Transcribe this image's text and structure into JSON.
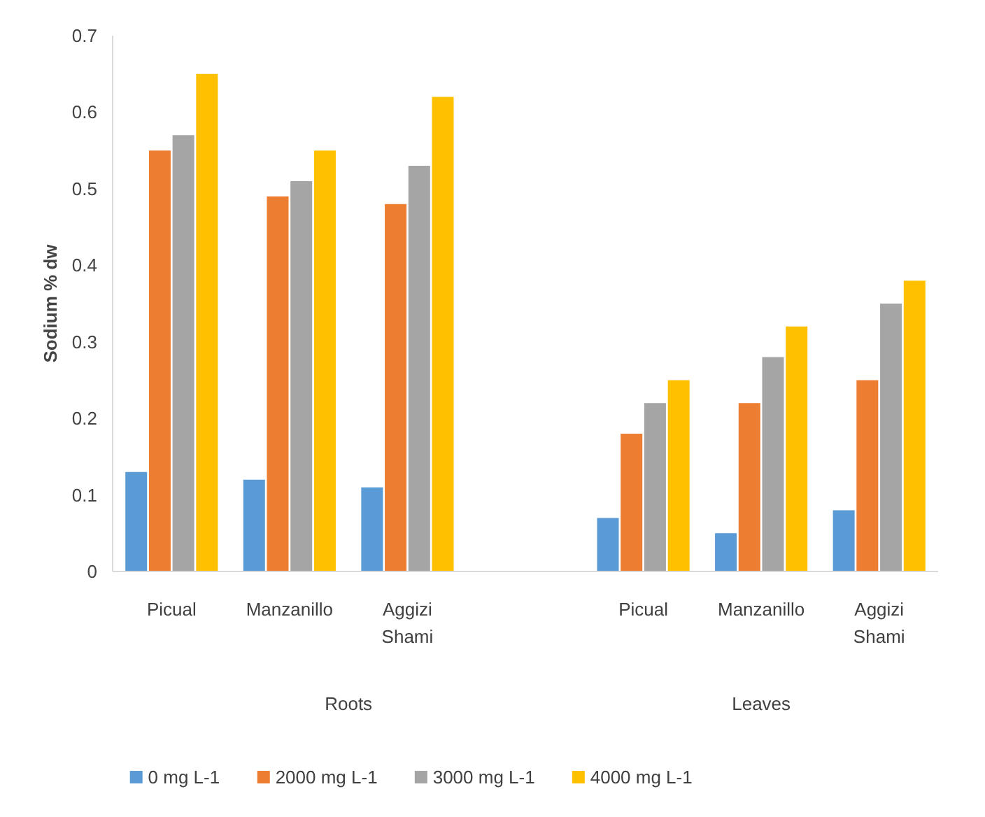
{
  "chart_data": {
    "type": "bar",
    "ylabel": "Sodium % dw",
    "categories": [
      "Picual",
      "Manzanillo",
      "Aggizi Shami",
      null,
      "Picual",
      "Manzanillo",
      "Aggizi Shami"
    ],
    "annotations": [
      "Roots",
      "Leaves"
    ],
    "series": [
      {
        "name": "0 mg L-1",
        "color": "#5b9bd5",
        "values": [
          0.13,
          0.12,
          0.11,
          null,
          0.07,
          0.05,
          0.08
        ]
      },
      {
        "name": "2000 mg L-1",
        "color": "#ed7d31",
        "values": [
          0.55,
          0.49,
          0.48,
          null,
          0.18,
          0.22,
          0.25
        ]
      },
      {
        "name": "3000 mg L-1",
        "color": "#a5a5a5",
        "values": [
          0.57,
          0.51,
          0.53,
          null,
          0.22,
          0.28,
          0.35
        ]
      },
      {
        "name": "4000 mg L-1",
        "color": "#ffc000",
        "values": [
          0.65,
          0.55,
          0.62,
          null,
          0.25,
          0.32,
          0.38
        ]
      }
    ],
    "ylim": [
      0,
      0.7
    ],
    "yticks": [
      0,
      0.1,
      0.2,
      0.3,
      0.4,
      0.5,
      0.6,
      0.7
    ],
    "grid": false,
    "legend": "bottom"
  }
}
